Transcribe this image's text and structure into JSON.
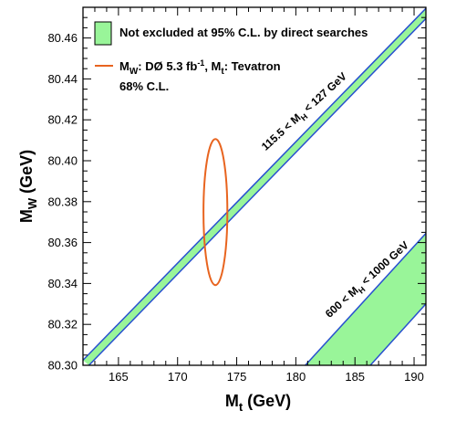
{
  "chart_data": {
    "type": "line",
    "xlabel": {
      "main": "M",
      "sub": "t",
      "unit": " (GeV)"
    },
    "ylabel": {
      "main": "M",
      "sub": "W",
      "unit": " (GeV)"
    },
    "xlim": [
      162,
      191
    ],
    "ylim": [
      80.3,
      80.475
    ],
    "x_ticks": [
      165,
      170,
      175,
      180,
      185,
      190
    ],
    "x_tick_labels": [
      "165",
      "170",
      "175",
      "180",
      "185",
      "190"
    ],
    "y_ticks": [
      80.3,
      80.32,
      80.34,
      80.36,
      80.38,
      80.4,
      80.42,
      80.44,
      80.46
    ],
    "y_tick_labels": [
      "80.30",
      "80.32",
      "80.34",
      "80.36",
      "80.38",
      "80.40",
      "80.42",
      "80.44",
      "80.46"
    ],
    "grid": false,
    "legend": {
      "position": "top-left",
      "entries": [
        {
          "label": "Not excluded at 95% C.L. by direct searches",
          "kind": "fill",
          "color": "#99f599"
        },
        {
          "label_parts": [
            "M",
            "W",
            ": DØ 5.3 fb",
            "-1",
            ", M",
            "t",
            ": Tevatron"
          ],
          "label_line2": "68% C.L.",
          "kind": "line",
          "color": "#e8641f"
        }
      ]
    },
    "bands": [
      {
        "label_parts": [
          "115.5 < M",
          "H",
          " < 127 GeV"
        ],
        "color": "#99f599",
        "edge_color": "#2850d0",
        "upper_edge": [
          [
            162,
            80.3025
          ],
          [
            191,
            80.4745
          ]
        ],
        "lower_edge": [
          [
            162.5,
            80.3
          ],
          [
            191,
            80.4695
          ]
        ]
      },
      {
        "label_parts": [
          "600 < M",
          "H",
          " < 1000 GeV"
        ],
        "color": "#99f599",
        "edge_color": "#2850d0",
        "upper_edge": [
          [
            180.8,
            80.3
          ],
          [
            191,
            80.3645
          ]
        ],
        "lower_edge": [
          [
            186.3,
            80.3
          ],
          [
            191,
            80.33
          ]
        ]
      }
    ],
    "ellipse": {
      "center": [
        173.2,
        80.3749
      ],
      "half_width": 1.01,
      "half_height": 0.0357,
      "color": "#e8641f"
    }
  }
}
